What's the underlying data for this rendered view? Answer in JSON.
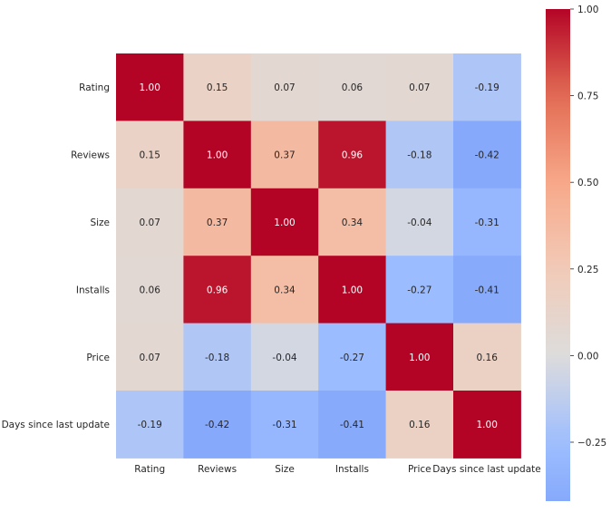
{
  "chart_data": {
    "type": "heatmap",
    "title": "",
    "row_labels": [
      "Rating",
      "Reviews",
      "Size",
      "Installs",
      "Price",
      "Days since last update"
    ],
    "col_labels": [
      "Rating",
      "Reviews",
      "Size",
      "Installs",
      "Price",
      "Days since last update"
    ],
    "values": [
      [
        1.0,
        0.15,
        0.07,
        0.06,
        0.07,
        -0.19
      ],
      [
        0.15,
        1.0,
        0.37,
        0.96,
        -0.18,
        -0.42
      ],
      [
        0.07,
        0.37,
        1.0,
        0.34,
        -0.04,
        -0.31
      ],
      [
        0.06,
        0.96,
        0.34,
        1.0,
        -0.27,
        -0.41
      ],
      [
        0.07,
        -0.18,
        -0.04,
        -0.27,
        1.0,
        0.16
      ],
      [
        -0.19,
        -0.42,
        -0.31,
        -0.41,
        0.16,
        1.0
      ]
    ],
    "annotation_format": "0.00",
    "colormap": "coolwarm",
    "center": 0,
    "colorbar": {
      "range": [
        -0.42,
        1.0
      ],
      "ticks": [
        1.0,
        0.75,
        0.5,
        0.25,
        0.0,
        -0.25
      ],
      "tick_labels": [
        "1.00",
        "0.75",
        "0.50",
        "0.25",
        "0.00",
        "−0.25"
      ],
      "placement": "right"
    }
  }
}
